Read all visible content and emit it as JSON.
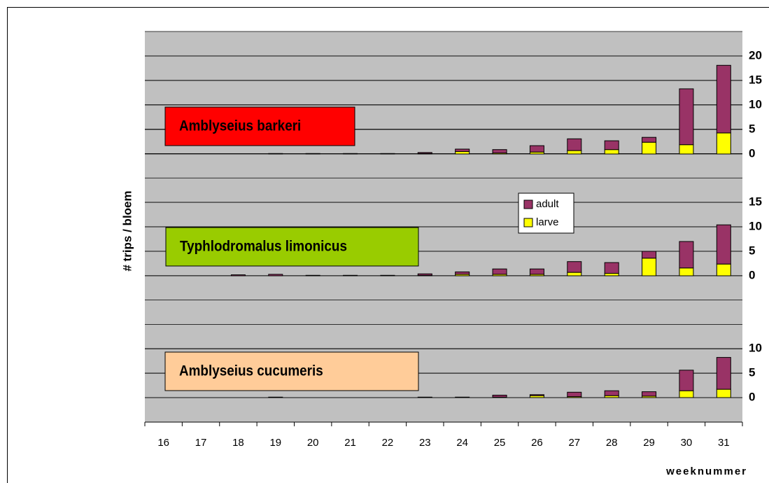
{
  "chart_data": {
    "type": "stacked_bar",
    "x_label": "weeknummer",
    "y_label": "# trips / bloem",
    "categories": [
      16,
      17,
      18,
      19,
      20,
      21,
      22,
      23,
      24,
      25,
      26,
      27,
      28,
      29,
      30,
      31
    ],
    "series": [
      {
        "name": "larve",
        "color": "#ffff00"
      },
      {
        "name": "adult",
        "color": "#993366"
      }
    ],
    "legend": "center",
    "panels": [
      {
        "title": "Amblyseius barkeri",
        "title_color": "#ff0000",
        "ylim": [
          0,
          20
        ],
        "yticks": [
          0,
          5,
          10,
          15,
          20
        ],
        "values": [
          [
            0,
            0,
            0,
            0,
            0,
            0,
            0,
            0.1,
            0.5,
            0.2,
            0.4,
            0.7,
            0.9,
            2.4,
            1.9,
            4.3
          ],
          [
            0,
            0,
            0,
            0.1,
            0.1,
            0.1,
            0.1,
            0.2,
            0.5,
            0.7,
            1.3,
            2.4,
            1.8,
            1.0,
            11.4,
            13.8
          ]
        ]
      },
      {
        "title": "Typhlodromalus limonicus",
        "title_color": "#99cc00",
        "ylim": [
          0,
          15
        ],
        "yticks": [
          0,
          5,
          10,
          15
        ],
        "values": [
          [
            0,
            0,
            0,
            0,
            0,
            0,
            0,
            0.1,
            0.3,
            0.3,
            0.3,
            0.7,
            0.5,
            3.6,
            1.6,
            2.4
          ],
          [
            0,
            0,
            0.2,
            0.3,
            0.1,
            0.1,
            0.1,
            0.3,
            0.5,
            1.1,
            1.1,
            2.2,
            2.2,
            1.4,
            5.4,
            8.0
          ]
        ]
      },
      {
        "title": "Amblyseius cucumeris",
        "title_color": "#ffcc99",
        "ylim": [
          0,
          10
        ],
        "yticks": [
          0,
          5,
          10
        ],
        "values": [
          [
            0,
            0,
            0,
            0,
            0,
            0,
            0,
            0,
            0,
            0.1,
            0.4,
            0.2,
            0.4,
            0.3,
            1.4,
            1.7
          ],
          [
            0,
            0,
            0,
            0.1,
            0,
            0,
            0,
            0.1,
            0.1,
            0.4,
            0.2,
            0.9,
            1.0,
            0.9,
            4.2,
            6.5
          ]
        ]
      }
    ]
  }
}
